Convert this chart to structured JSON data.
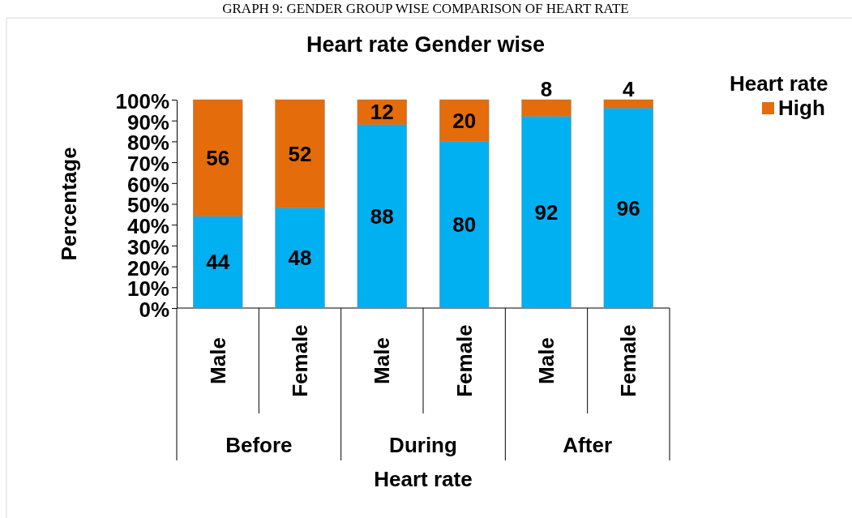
{
  "chart_data": {
    "type": "bar",
    "title": "Heart rate Gender wise",
    "xlabel": "Heart rate",
    "ylabel": "Percentage",
    "legend_title": "Heart rate",
    "legend": "top right",
    "stacked": true,
    "data_labels": true,
    "annotations": [
      "GRAPH 9: GENDER GROUP WISE COMPARISON OF HEART RATE",
      "Before",
      "During",
      "After"
    ],
    "categories": [
      "Male",
      "Female",
      "Male",
      "Female",
      "Male",
      "Female"
    ],
    "series": [
      {
        "color": "#00b0f0",
        "values": [
          44,
          48,
          88,
          80,
          92,
          96
        ]
      },
      {
        "name": "High",
        "color": "#e46c0a",
        "values": [
          56,
          52,
          12,
          20,
          8,
          4
        ]
      }
    ],
    "ylim": [
      0,
      100
    ],
    "yticks": [
      {
        "value": 0,
        "label": "0%"
      },
      {
        "value": 10,
        "label": "10%"
      },
      {
        "value": 20,
        "label": "20%"
      },
      {
        "value": 30,
        "label": "30%"
      },
      {
        "value": 40,
        "label": "40%"
      },
      {
        "value": 50,
        "label": "50%"
      },
      {
        "value": 60,
        "label": "60%"
      },
      {
        "value": 70,
        "label": "70%"
      },
      {
        "value": 80,
        "label": "80%"
      },
      {
        "value": 90,
        "label": "90%"
      },
      {
        "value": 100,
        "label": "100%"
      }
    ]
  }
}
